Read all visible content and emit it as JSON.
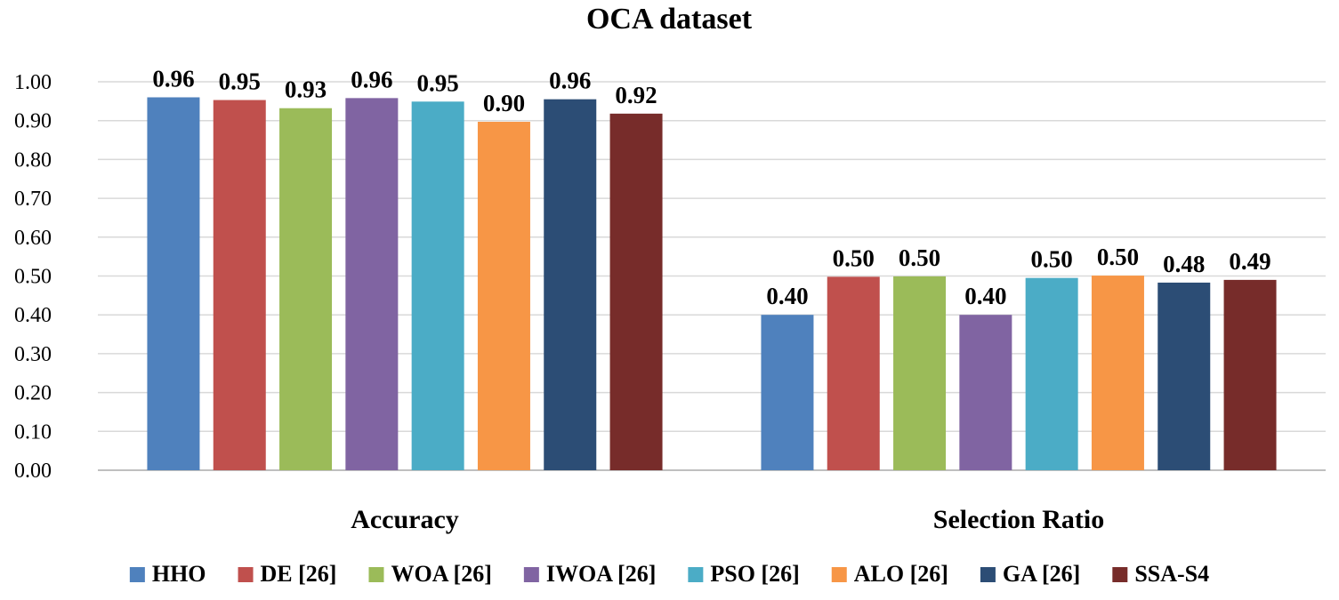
{
  "chart_data": {
    "type": "bar",
    "title": "OCA dataset",
    "xlabel": "",
    "ylabel": "",
    "ylim": [
      0,
      1.0
    ],
    "yticks": [
      "0.00",
      "0.10",
      "0.20",
      "0.30",
      "0.40",
      "0.50",
      "0.60",
      "0.70",
      "0.80",
      "0.90",
      "1.00"
    ],
    "grid": true,
    "legend_position": "bottom",
    "categories": [
      "Accuracy",
      "Selection Ratio"
    ],
    "series": [
      {
        "name": "HHO",
        "color": "#4F81BD",
        "values": [
          0.96,
          0.4
        ],
        "labels": [
          "0.96",
          "0.40"
        ]
      },
      {
        "name": "DE [26]",
        "color": "#C0504D",
        "values": [
          0.953,
          0.498
        ],
        "labels": [
          "0.95",
          "0.50"
        ]
      },
      {
        "name": "WOA [26]",
        "color": "#9BBB59",
        "values": [
          0.932,
          0.499
        ],
        "labels": [
          "0.93",
          "0.50"
        ]
      },
      {
        "name": "IWOA [26]",
        "color": "#8064A2",
        "values": [
          0.958,
          0.4
        ],
        "labels": [
          "0.96",
          "0.40"
        ]
      },
      {
        "name": "PSO [26]",
        "color": "#4BACC6",
        "values": [
          0.949,
          0.495
        ],
        "labels": [
          "0.95",
          "0.50"
        ]
      },
      {
        "name": "ALO [26]",
        "color": "#F79646",
        "values": [
          0.897,
          0.501
        ],
        "labels": [
          "0.90",
          "0.50"
        ]
      },
      {
        "name": "GA [26]",
        "color": "#2C4D75",
        "values": [
          0.955,
          0.483
        ],
        "labels": [
          "0.96",
          "0.48"
        ]
      },
      {
        "name": "SSA-S4",
        "color": "#772C2A",
        "values": [
          0.918,
          0.49
        ],
        "labels": [
          "0.92",
          "0.49"
        ]
      }
    ]
  }
}
